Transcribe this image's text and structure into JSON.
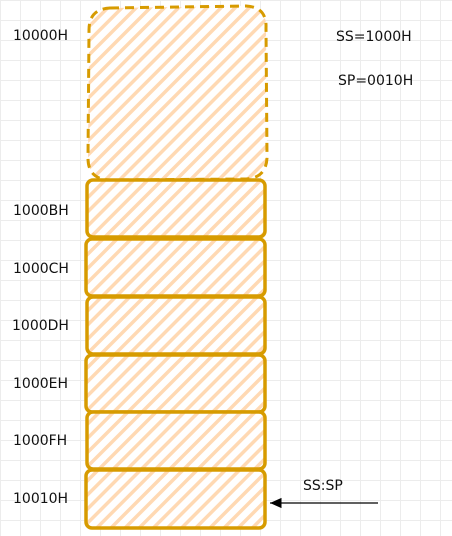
{
  "diagram": {
    "registers": {
      "ss": "SS=1000H",
      "sp": "SP=0010H"
    },
    "addresses": [
      "10000H",
      "1000BH",
      "1000CH",
      "1000DH",
      "1000EH",
      "1000FH",
      "10010H"
    ],
    "pointer_label": "SS:SP",
    "colors": {
      "stroke": "#d79b00",
      "fill": "#ffe6cc"
    }
  }
}
